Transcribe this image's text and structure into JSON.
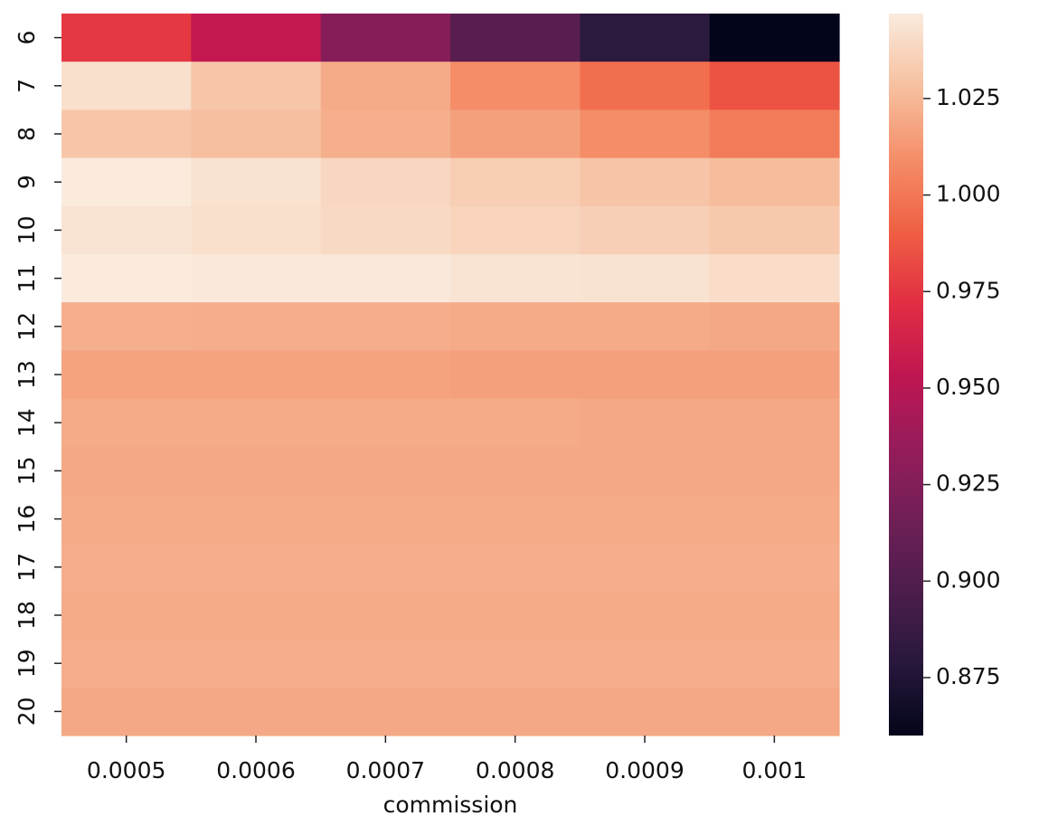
{
  "chart_data": {
    "type": "heatmap",
    "title": "",
    "xlabel": "commission",
    "ylabel": "",
    "x_categories": [
      "0.0005",
      "0.0006",
      "0.0007",
      "0.0008",
      "0.0009",
      "0.001"
    ],
    "y_categories": [
      "6",
      "7",
      "8",
      "9",
      "10",
      "11",
      "12",
      "13",
      "14",
      "15",
      "16",
      "17",
      "18",
      "19",
      "20"
    ],
    "values": [
      [
        0.976,
        0.955,
        0.927,
        0.904,
        0.881,
        0.86
      ],
      [
        1.042,
        1.031,
        1.02,
        1.009,
        0.997,
        0.986
      ],
      [
        1.031,
        1.028,
        1.022,
        1.016,
        1.009,
        1.002
      ],
      [
        1.047,
        1.043,
        1.038,
        1.034,
        1.03,
        1.027
      ],
      [
        1.044,
        1.042,
        1.039,
        1.037,
        1.035,
        1.032
      ],
      [
        1.047,
        1.046,
        1.046,
        1.044,
        1.043,
        1.041
      ],
      [
        1.022,
        1.021,
        1.021,
        1.02,
        1.02,
        1.019
      ],
      [
        1.017,
        1.017,
        1.017,
        1.016,
        1.016,
        1.016
      ],
      [
        1.02,
        1.02,
        1.02,
        1.02,
        1.019,
        1.019
      ],
      [
        1.019,
        1.019,
        1.019,
        1.019,
        1.019,
        1.019
      ],
      [
        1.02,
        1.02,
        1.02,
        1.02,
        1.02,
        1.02
      ],
      [
        1.021,
        1.021,
        1.021,
        1.021,
        1.021,
        1.021
      ],
      [
        1.02,
        1.02,
        1.02,
        1.02,
        1.02,
        1.02
      ],
      [
        1.021,
        1.021,
        1.021,
        1.021,
        1.021,
        1.021
      ],
      [
        1.019,
        1.019,
        1.019,
        1.019,
        1.019,
        1.019
      ]
    ],
    "vmin": 0.86,
    "vmax": 1.047,
    "colormap": "rocket",
    "colorbar_ticks": [
      "0.875",
      "0.900",
      "0.925",
      "0.950",
      "0.975",
      "1.000",
      "1.025"
    ],
    "legend_placement": "right",
    "grid": false
  }
}
